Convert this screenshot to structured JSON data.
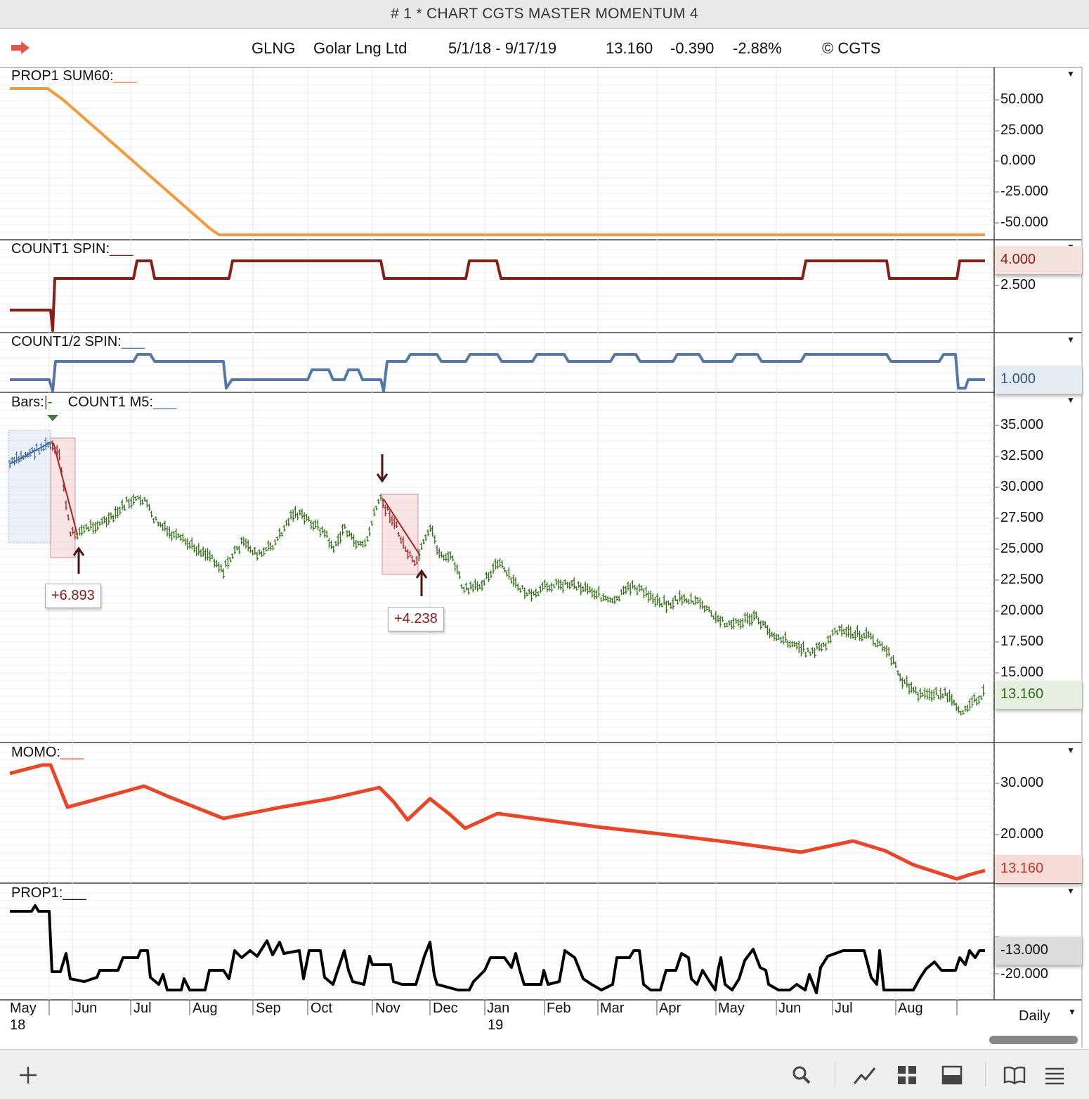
{
  "window": {
    "title": "# 1 * CHART CGTS MASTER MOMENTUM 4"
  },
  "header": {
    "symbol": "GLNG",
    "name": "Golar Lng Ltd",
    "date_range": "5/1/18 - 9/17/19",
    "last": "13.160",
    "change": "-0.390",
    "change_pct": "-2.88%",
    "copyright": "© CGTS",
    "arrow_icon": "red-right-arrow"
  },
  "panels": {
    "sum60": {
      "label": "PROP1 SUM60:",
      "label_suffix": "___",
      "color": "#f29b38",
      "ticks": [
        "50.000",
        "25.000",
        "0.000",
        "-25.000",
        "-50.000"
      ]
    },
    "count1_spin": {
      "label": "COUNT1 SPIN:",
      "label_suffix": "___",
      "color": "#8b1e14",
      "ticks": [
        "2.500"
      ],
      "current_value": "4.000"
    },
    "count12_spin": {
      "label": "COUNT1/2 SPIN:",
      "label_suffix": "___",
      "color": "#5578a8",
      "current_value": "1.000"
    },
    "price": {
      "label": "Bars:",
      "bars_marker": "|-",
      "count_label": "COUNT1 M5:",
      "label_suffix": "___",
      "color": "#2e6e14",
      "ticks": [
        "35.000",
        "32.500",
        "30.000",
        "27.500",
        "25.000",
        "22.500",
        "20.000",
        "17.500",
        "15.000"
      ],
      "current_value": "13.160",
      "annotations": [
        "+6.893",
        "+4.238"
      ]
    },
    "momo": {
      "label": "MOMO:",
      "label_suffix": "___",
      "color": "#ef4326",
      "ticks": [
        "30.000",
        "20.000"
      ],
      "current_value": "13.160"
    },
    "prop1": {
      "label": "PROP1:",
      "label_suffix": "___",
      "color": "#000000",
      "ticks": [
        "-20.000"
      ],
      "current_value": "-13.000"
    }
  },
  "x_axis": {
    "months": [
      "May",
      "Jun",
      "Jul",
      "Aug",
      "Sep",
      "Oct",
      "Nov",
      "Dec",
      "Jan",
      "Feb",
      "Mar",
      "Apr",
      "May",
      "Jun",
      "Jul",
      "Aug"
    ],
    "years": [
      "18",
      "19"
    ]
  },
  "footer": {
    "interval": "Daily"
  },
  "toolbar": {
    "icons": [
      "plus-icon",
      "search-icon",
      "line-chart-icon",
      "grid-icon",
      "panel-icon",
      "book-icon",
      "list-icon"
    ]
  }
}
